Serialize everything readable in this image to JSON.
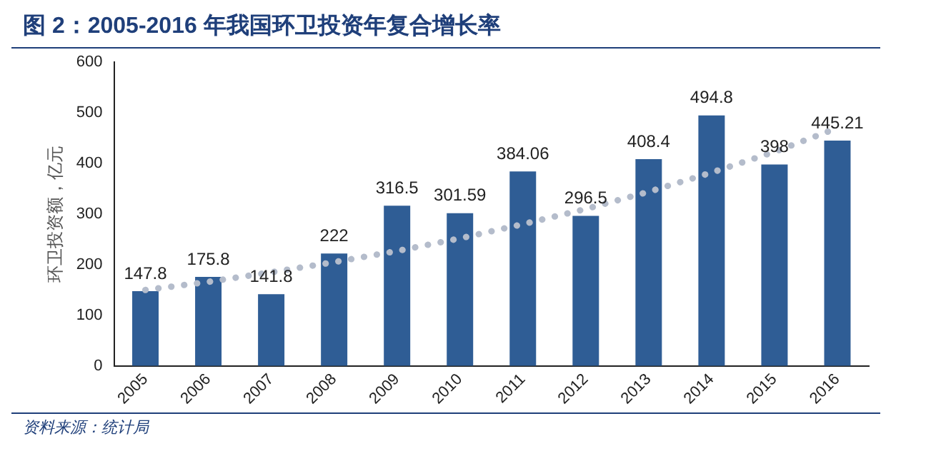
{
  "chart_data": {
    "type": "bar",
    "title": "图 2：2005-2016 年我国环卫投资年复合增长率",
    "ylabel": "环卫投资额，亿元",
    "categories": [
      "2005",
      "2006",
      "2007",
      "2008",
      "2009",
      "2010",
      "2011",
      "2012",
      "2013",
      "2014",
      "2015",
      "2016"
    ],
    "series": [
      {
        "color": "#2f5d95",
        "values": [
          147.8,
          175.8,
          141.8,
          222,
          316.5,
          301.59,
          384.06,
          296.5,
          408.4,
          494.8,
          398,
          445.21
        ],
        "value_labels": [
          "147.8",
          "175.8",
          "141.8",
          "222",
          "316.5",
          "301.59",
          "384.06",
          "296.5",
          "408.4",
          "494.8",
          "398",
          "445.21"
        ]
      },
      {
        "type": "line",
        "color": "#b4bccb",
        "line_style": "dotted",
        "values": [
          150,
          166,
          185,
          205,
          227,
          252,
          280,
          310,
          344,
          382,
          423,
          470
        ]
      }
    ],
    "ylim": [
      0,
      600
    ],
    "yticks": [
      0,
      100,
      200,
      300,
      400,
      500,
      600
    ],
    "grid": false,
    "legend": false,
    "annotations": [
      "资料来源：统计局"
    ]
  }
}
